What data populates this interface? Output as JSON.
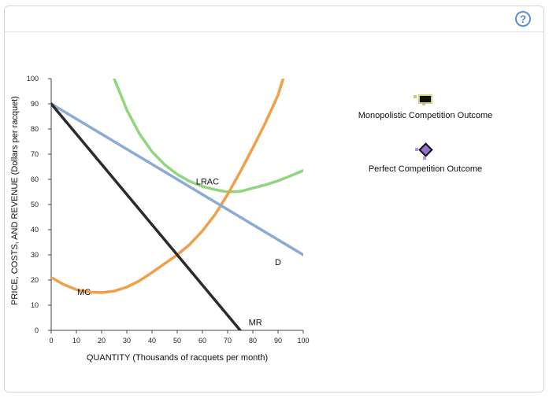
{
  "help": {
    "label": "?"
  },
  "tools": {
    "mono": {
      "label": "Monopolistic Competition Outcome",
      "color": "#b8b36a",
      "icon": "black-rectangle-point-icon"
    },
    "perfect": {
      "label": "Perfect Competition Outcome",
      "color": "#9b6fd0",
      "icon": "purple-diamond-point-icon"
    }
  },
  "chart_data": {
    "type": "line",
    "xlabel": "QUANTITY (Thousands of racquets per month)",
    "ylabel": "PRICE, COSTS, AND REVENUE (Dollars per racquet)",
    "xlim": [
      0,
      100
    ],
    "ylim": [
      0,
      100
    ],
    "xticks": [
      "0",
      "10",
      "20",
      "30",
      "40",
      "50",
      "60",
      "70",
      "80",
      "90",
      "100"
    ],
    "yticks": [
      "0",
      "10",
      "20",
      "30",
      "40",
      "50",
      "60",
      "70",
      "80",
      "90",
      "100"
    ],
    "grid": false,
    "series": [
      {
        "name": "LRAC",
        "color": "#8fd67c",
        "x": [
          25,
          30,
          35,
          40,
          45,
          50,
          55,
          60,
          65,
          70,
          75,
          80,
          85,
          90,
          95,
          100
        ],
        "y": [
          100,
          87.6,
          78.1,
          71.0,
          65.8,
          62.0,
          59.2,
          57.2,
          55.9,
          55.0,
          55.2,
          56.5,
          57.8,
          59.4,
          61.4,
          63.5
        ]
      },
      {
        "name": "MC",
        "color": "#f0a04b",
        "x": [
          0,
          5,
          10,
          15,
          20,
          25,
          30,
          35,
          40,
          45,
          50,
          55,
          60,
          65,
          70,
          75,
          80,
          85,
          90,
          92
        ],
        "y": [
          21,
          18.2,
          16.2,
          15.2,
          15.0,
          15.6,
          17.2,
          19.7,
          23.0,
          26.5,
          30.0,
          34.2,
          39.5,
          46.0,
          54.0,
          63.0,
          72.5,
          82.5,
          93.5,
          100
        ]
      },
      {
        "name": "D",
        "color": "#8aabd6",
        "x": [
          0,
          100
        ],
        "y": [
          90,
          30
        ]
      },
      {
        "name": "MR",
        "color": "#2b2b2b",
        "x": [
          0,
          75
        ],
        "y": [
          90,
          0
        ]
      }
    ],
    "labels": [
      {
        "text": "LRAC",
        "x": 62,
        "y": 58
      },
      {
        "text": "MC",
        "x": 13,
        "y": 14
      },
      {
        "text": "D",
        "x": 90,
        "y": 26
      },
      {
        "text": "MR",
        "x": 81,
        "y": 2
      }
    ]
  }
}
